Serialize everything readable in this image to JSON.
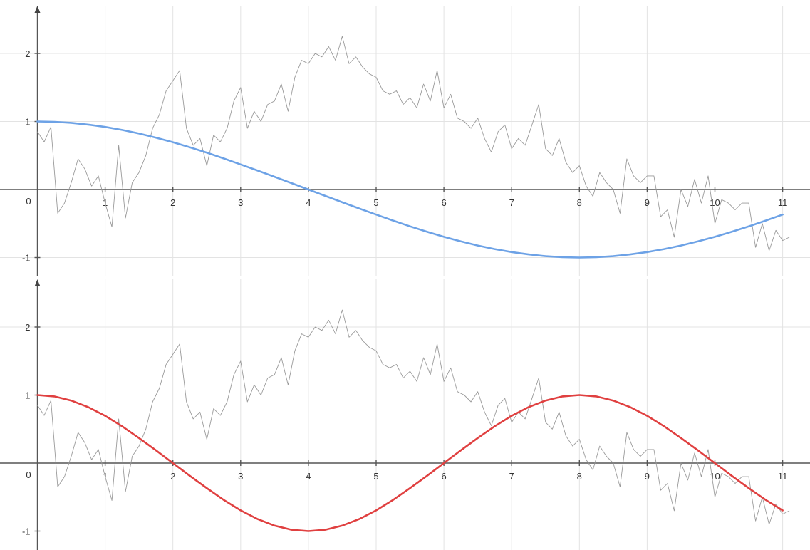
{
  "chart_data": [
    {
      "type": "line",
      "title": "",
      "xlabel": "",
      "ylabel": "",
      "xlim": [
        -0.15,
        11.35
      ],
      "ylim": [
        -1.2,
        2.65
      ],
      "x_ticks": [
        1,
        2,
        3,
        4,
        5,
        6,
        7,
        8,
        9,
        10,
        11
      ],
      "y_ticks": [
        -1,
        1,
        2
      ],
      "origin_label": "0",
      "grid": true,
      "legend": "none",
      "series": [
        {
          "kind": "noisy",
          "color": "#9a9a9a",
          "x": [
            0,
            0.1,
            0.2,
            0.3,
            0.4,
            0.5,
            0.6,
            0.7,
            0.8,
            0.9,
            1.0,
            1.1,
            1.2,
            1.3,
            1.4,
            1.5,
            1.6,
            1.7,
            1.8,
            1.9,
            2.0,
            2.1,
            2.2,
            2.3,
            2.4,
            2.5,
            2.6,
            2.7,
            2.8,
            2.9,
            3.0,
            3.1,
            3.2,
            3.3,
            3.4,
            3.5,
            3.6,
            3.7,
            3.8,
            3.9,
            4.0,
            4.1,
            4.2,
            4.3,
            4.4,
            4.5,
            4.6,
            4.7,
            4.8,
            4.9,
            5.0,
            5.1,
            5.2,
            5.3,
            5.4,
            5.5,
            5.6,
            5.7,
            5.8,
            5.9,
            6.0,
            6.1,
            6.2,
            6.3,
            6.4,
            6.5,
            6.6,
            6.7,
            6.8,
            6.9,
            7.0,
            7.1,
            7.2,
            7.3,
            7.4,
            7.5,
            7.6,
            7.7,
            7.8,
            7.9,
            8.0,
            8.1,
            8.2,
            8.3,
            8.4,
            8.5,
            8.6,
            8.7,
            8.8,
            8.9,
            9.0,
            9.1,
            9.2,
            9.3,
            9.4,
            9.5,
            9.6,
            9.7,
            9.8,
            9.9,
            10.0,
            10.1,
            10.2,
            10.3,
            10.4,
            10.5,
            10.6,
            10.7,
            10.8,
            10.9,
            11.0,
            11.1
          ],
          "values": [
            0.85,
            0.7,
            0.92,
            -0.35,
            -0.2,
            0.1,
            0.45,
            0.3,
            0.05,
            0.2,
            -0.2,
            -0.55,
            0.65,
            -0.42,
            0.1,
            0.25,
            0.5,
            0.9,
            1.1,
            1.45,
            1.6,
            1.75,
            0.9,
            0.65,
            0.75,
            0.35,
            0.8,
            0.7,
            0.9,
            1.3,
            1.5,
            0.9,
            1.15,
            1.0,
            1.25,
            1.3,
            1.55,
            1.15,
            1.65,
            1.9,
            1.85,
            2.0,
            1.95,
            2.1,
            1.9,
            2.25,
            1.85,
            1.95,
            1.8,
            1.7,
            1.65,
            1.45,
            1.4,
            1.45,
            1.25,
            1.35,
            1.2,
            1.55,
            1.3,
            1.75,
            1.2,
            1.4,
            1.05,
            1.0,
            0.9,
            1.05,
            0.75,
            0.55,
            0.85,
            0.95,
            0.6,
            0.75,
            0.65,
            0.95,
            1.25,
            0.6,
            0.5,
            0.75,
            0.4,
            0.25,
            0.35,
            0.05,
            -0.1,
            0.25,
            0.1,
            0.0,
            -0.35,
            0.45,
            0.2,
            0.1,
            0.2,
            0.2,
            -0.4,
            -0.3,
            -0.7,
            0.0,
            -0.25,
            0.15,
            -0.2,
            0.2,
            -0.5,
            -0.15,
            -0.2,
            -0.3,
            -0.2,
            -0.2,
            -0.85,
            -0.5,
            -0.9,
            -0.6,
            -0.75,
            -0.7
          ]
        },
        {
          "kind": "smooth",
          "color": "#6da2e6",
          "x": [
            0,
            0.25,
            0.5,
            0.75,
            1.0,
            1.25,
            1.5,
            1.75,
            2.0,
            2.25,
            2.5,
            2.75,
            3.0,
            3.25,
            3.5,
            3.75,
            4.0,
            4.25,
            4.5,
            4.75,
            5.0,
            5.25,
            5.5,
            5.75,
            6.0,
            6.25,
            6.5,
            6.75,
            7.0,
            7.25,
            7.5,
            7.75,
            8.0,
            8.25,
            8.5,
            8.75,
            9.0,
            9.25,
            9.5,
            9.75,
            10.0,
            10.25,
            10.5,
            10.75,
            11.0
          ],
          "values": [
            1.0,
            0.995,
            0.98,
            0.954,
            0.919,
            0.875,
            0.823,
            0.762,
            0.695,
            0.621,
            0.541,
            0.457,
            0.369,
            0.279,
            0.187,
            0.094,
            0.0,
            -0.094,
            -0.187,
            -0.279,
            -0.369,
            -0.457,
            -0.541,
            -0.621,
            -0.695,
            -0.762,
            -0.823,
            -0.875,
            -0.919,
            -0.954,
            -0.98,
            -0.995,
            -1.0,
            -0.995,
            -0.98,
            -0.954,
            -0.919,
            -0.875,
            -0.823,
            -0.762,
            -0.695,
            -0.621,
            -0.541,
            -0.457,
            -0.369
          ]
        }
      ]
    },
    {
      "type": "line",
      "title": "",
      "xlabel": "",
      "ylabel": "",
      "xlim": [
        -0.15,
        11.35
      ],
      "ylim": [
        -1.2,
        2.65
      ],
      "x_ticks": [
        1,
        2,
        3,
        4,
        5,
        6,
        7,
        8,
        9,
        10,
        11
      ],
      "y_ticks": [
        -1,
        1,
        2
      ],
      "origin_label": "0",
      "grid": true,
      "legend": "none",
      "series": [
        {
          "kind": "noisy",
          "color": "#9a9a9a",
          "x": [
            0,
            0.1,
            0.2,
            0.3,
            0.4,
            0.5,
            0.6,
            0.7,
            0.8,
            0.9,
            1.0,
            1.1,
            1.2,
            1.3,
            1.4,
            1.5,
            1.6,
            1.7,
            1.8,
            1.9,
            2.0,
            2.1,
            2.2,
            2.3,
            2.4,
            2.5,
            2.6,
            2.7,
            2.8,
            2.9,
            3.0,
            3.1,
            3.2,
            3.3,
            3.4,
            3.5,
            3.6,
            3.7,
            3.8,
            3.9,
            4.0,
            4.1,
            4.2,
            4.3,
            4.4,
            4.5,
            4.6,
            4.7,
            4.8,
            4.9,
            5.0,
            5.1,
            5.2,
            5.3,
            5.4,
            5.5,
            5.6,
            5.7,
            5.8,
            5.9,
            6.0,
            6.1,
            6.2,
            6.3,
            6.4,
            6.5,
            6.6,
            6.7,
            6.8,
            6.9,
            7.0,
            7.1,
            7.2,
            7.3,
            7.4,
            7.5,
            7.6,
            7.7,
            7.8,
            7.9,
            8.0,
            8.1,
            8.2,
            8.3,
            8.4,
            8.5,
            8.6,
            8.7,
            8.8,
            8.9,
            9.0,
            9.1,
            9.2,
            9.3,
            9.4,
            9.5,
            9.6,
            9.7,
            9.8,
            9.9,
            10.0,
            10.1,
            10.2,
            10.3,
            10.4,
            10.5,
            10.6,
            10.7,
            10.8,
            10.9,
            11.0,
            11.1
          ],
          "values": [
            0.85,
            0.7,
            0.92,
            -0.35,
            -0.2,
            0.1,
            0.45,
            0.3,
            0.05,
            0.2,
            -0.2,
            -0.55,
            0.65,
            -0.42,
            0.1,
            0.25,
            0.5,
            0.9,
            1.1,
            1.45,
            1.6,
            1.75,
            0.9,
            0.65,
            0.75,
            0.35,
            0.8,
            0.7,
            0.9,
            1.3,
            1.5,
            0.9,
            1.15,
            1.0,
            1.25,
            1.3,
            1.55,
            1.15,
            1.65,
            1.9,
            1.85,
            2.0,
            1.95,
            2.1,
            1.9,
            2.25,
            1.85,
            1.95,
            1.8,
            1.7,
            1.65,
            1.45,
            1.4,
            1.45,
            1.25,
            1.35,
            1.2,
            1.55,
            1.3,
            1.75,
            1.2,
            1.4,
            1.05,
            1.0,
            0.9,
            1.05,
            0.75,
            0.55,
            0.85,
            0.95,
            0.6,
            0.75,
            0.65,
            0.95,
            1.25,
            0.6,
            0.5,
            0.75,
            0.4,
            0.25,
            0.35,
            0.05,
            -0.1,
            0.25,
            0.1,
            0.0,
            -0.35,
            0.45,
            0.2,
            0.1,
            0.2,
            0.2,
            -0.4,
            -0.3,
            -0.7,
            0.0,
            -0.25,
            0.15,
            -0.2,
            0.2,
            -0.5,
            -0.15,
            -0.2,
            -0.3,
            -0.2,
            -0.2,
            -0.85,
            -0.5,
            -0.9,
            -0.6,
            -0.75,
            -0.7
          ]
        },
        {
          "kind": "smooth",
          "color": "#e04040",
          "x": [
            0,
            0.25,
            0.5,
            0.75,
            1.0,
            1.25,
            1.5,
            1.75,
            2.0,
            2.25,
            2.5,
            2.75,
            3.0,
            3.25,
            3.5,
            3.75,
            4.0,
            4.25,
            4.5,
            4.75,
            5.0,
            5.25,
            5.5,
            5.75,
            6.0,
            6.25,
            6.5,
            6.75,
            7.0,
            7.25,
            7.5,
            7.75,
            8.0,
            8.25,
            8.5,
            8.75,
            9.0,
            9.25,
            9.5,
            9.75,
            10.0,
            10.25,
            10.5,
            10.75,
            11.0
          ],
          "values": [
            1.0,
            0.98,
            0.919,
            0.823,
            0.695,
            0.541,
            0.369,
            0.187,
            0.0,
            -0.187,
            -0.369,
            -0.541,
            -0.695,
            -0.823,
            -0.919,
            -0.98,
            -1.0,
            -0.98,
            -0.919,
            -0.823,
            -0.695,
            -0.541,
            -0.369,
            -0.187,
            0.0,
            0.187,
            0.369,
            0.541,
            0.695,
            0.823,
            0.919,
            0.98,
            1.0,
            0.98,
            0.919,
            0.823,
            0.695,
            0.541,
            0.369,
            0.187,
            0.0,
            -0.187,
            -0.369,
            -0.541,
            -0.695
          ]
        }
      ]
    }
  ]
}
